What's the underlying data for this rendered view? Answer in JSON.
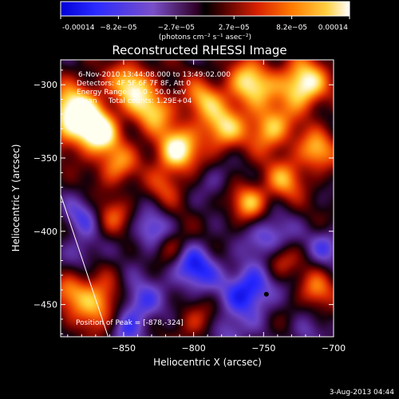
{
  "chart_data": {
    "type": "heatmap",
    "title": "Reconstructed RHESSI Image",
    "xlabel": "Heliocentric X (arcsec)",
    "ylabel": "Heliocentric Y (arcsec)",
    "xlim": [
      -895,
      -700
    ],
    "ylim": [
      -472,
      -283
    ],
    "x_ticks": [
      -850,
      -800,
      -750,
      -700
    ],
    "y_ticks": [
      -300,
      -350,
      -400,
      -450
    ],
    "colorbar": {
      "ticks": [
        "-0.00014",
        "−8.2e−05",
        "−2.7e−05",
        "2.7e−05",
        "8.2e−05",
        "0.00014"
      ],
      "unit_label": "(photons cm⁻² s⁻¹ asec⁻²)",
      "range": [
        -0.00014,
        0.00014
      ]
    },
    "annotations": [
      "6-Nov-2010 13:44:08.000 to 13:49:02.000",
      "Detectors: 4F 5F 6F 7F 8F, Att 0",
      "Energy Range: 25.0 - 50.0 keV",
      "Clean     Total counts: 1.29E+04"
    ],
    "peak_label": "Position of Peak = [-878,-324]",
    "peak": [
      -878,
      -324
    ],
    "image_blobs": [
      {
        "x": -885,
        "y": -320,
        "a": 1.3,
        "s": 14
      },
      {
        "x": -868,
        "y": -333,
        "a": 1.0,
        "s": 10
      },
      {
        "x": -845,
        "y": -300,
        "a": 0.9,
        "s": 11
      },
      {
        "x": -855,
        "y": -355,
        "a": 0.7,
        "s": 10
      },
      {
        "x": -830,
        "y": -318,
        "a": 0.8,
        "s": 11
      },
      {
        "x": -812,
        "y": -345,
        "a": 1.1,
        "s": 11
      },
      {
        "x": -795,
        "y": -310,
        "a": 0.7,
        "s": 10
      },
      {
        "x": -780,
        "y": -330,
        "a": 0.9,
        "s": 11
      },
      {
        "x": -760,
        "y": -300,
        "a": 1.0,
        "s": 12
      },
      {
        "x": -745,
        "y": -330,
        "a": 0.9,
        "s": 11
      },
      {
        "x": -722,
        "y": -300,
        "a": 1.2,
        "s": 12
      },
      {
        "x": -712,
        "y": -345,
        "a": 0.8,
        "s": 10
      },
      {
        "x": -735,
        "y": -365,
        "a": 0.7,
        "s": 10
      },
      {
        "x": -760,
        "y": -380,
        "a": 0.8,
        "s": 9
      },
      {
        "x": -858,
        "y": -390,
        "a": 0.5,
        "s": 9
      },
      {
        "x": -815,
        "y": -410,
        "a": 0.5,
        "s": 8
      },
      {
        "x": -868,
        "y": -450,
        "a": 0.9,
        "s": 12
      },
      {
        "x": -888,
        "y": -440,
        "a": 0.6,
        "s": 9
      },
      {
        "x": -740,
        "y": -420,
        "a": 0.6,
        "s": 9
      },
      {
        "x": -712,
        "y": -440,
        "a": 0.6,
        "s": 9
      },
      {
        "x": -820,
        "y": -370,
        "a": 0.4,
        "s": 9
      },
      {
        "x": -800,
        "y": -462,
        "a": 0.4,
        "s": 9
      },
      {
        "x": -840,
        "y": -450,
        "a": -0.7,
        "s": 12
      },
      {
        "x": -800,
        "y": -425,
        "a": -0.8,
        "s": 12
      },
      {
        "x": -760,
        "y": -440,
        "a": -0.9,
        "s": 13
      },
      {
        "x": -745,
        "y": -405,
        "a": -0.7,
        "s": 11
      },
      {
        "x": -830,
        "y": -400,
        "a": -0.6,
        "s": 10
      },
      {
        "x": -705,
        "y": -410,
        "a": -0.5,
        "s": 9
      },
      {
        "x": -880,
        "y": -390,
        "a": -0.5,
        "s": 10
      },
      {
        "x": -880,
        "y": -415,
        "a": -0.4,
        "s": 9
      },
      {
        "x": -785,
        "y": -365,
        "a": -0.3,
        "s": 9
      },
      {
        "x": -850,
        "y": -470,
        "a": -0.4,
        "s": 9
      },
      {
        "x": -775,
        "y": -470,
        "a": -0.5,
        "s": 9
      },
      {
        "x": -720,
        "y": -470,
        "a": -0.4,
        "s": 8
      }
    ]
  },
  "footer_date": "3-Aug-2013 04:44"
}
